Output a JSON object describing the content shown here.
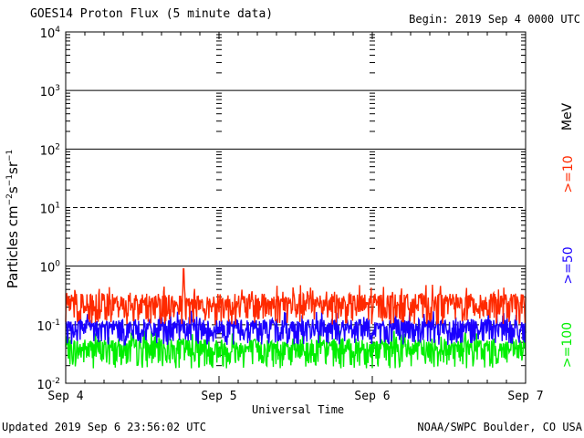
{
  "header": {
    "title": "GOES14 Proton Flux (5 minute data)",
    "begin": "Begin: 2019 Sep 4 0000 UTC"
  },
  "footer": {
    "updated": "Updated 2019 Sep  6 23:56:02 UTC",
    "credit": "NOAA/SWPC Boulder, CO USA"
  },
  "chart_data": {
    "type": "line",
    "xlabel": "Universal Time",
    "ylabel": "Particles cm-2s-1sr-1",
    "x_range_days": [
      0,
      3
    ],
    "x_ticks": [
      "Sep 4",
      "Sep 5",
      "Sep 6",
      "Sep 7"
    ],
    "y_scale": "log",
    "ylim": [
      0.01,
      10000
    ],
    "y_ticks": [
      {
        "base": "10",
        "exp": "-2"
      },
      {
        "base": "10",
        "exp": "-1"
      },
      {
        "base": "10",
        "exp": "0"
      },
      {
        "base": "10",
        "exp": "1"
      },
      {
        "base": "10",
        "exp": "2"
      },
      {
        "base": "10",
        "exp": "3"
      },
      {
        "base": "10",
        "exp": "4"
      }
    ],
    "unit_label": "MeV",
    "series": [
      {
        "name": ">=10",
        "color": "#ff2a00",
        "baseline": 0.22,
        "spread": 0.12,
        "spike": {
          "x": 0.77,
          "y": 0.9
        }
      },
      {
        "name": ">=50",
        "color": "#1a00ff",
        "baseline": 0.085,
        "spread": 0.04
      },
      {
        "name": ">=100",
        "color": "#00ee00",
        "baseline": 0.038,
        "spread": 0.02
      }
    ]
  }
}
